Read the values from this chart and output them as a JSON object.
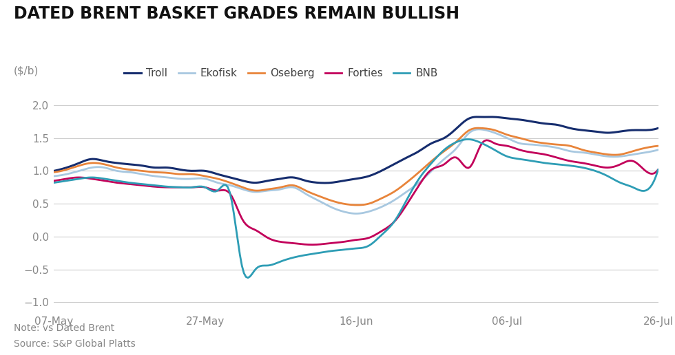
{
  "title": "DATED BRENT BASKET GRADES REMAIN BULLISH",
  "ylabel": "($/b)",
  "note": "Note: vs Dated Brent",
  "source": "Source: S&P Global Platts",
  "title_fontsize": 17,
  "label_fontsize": 11,
  "tick_fontsize": 11,
  "note_fontsize": 10,
  "ylim": [
    -1.1,
    2.25
  ],
  "yticks": [
    -1.0,
    -0.5,
    0.0,
    0.5,
    1.0,
    1.5,
    2.0
  ],
  "xtick_labels": [
    "07-May",
    "27-May",
    "16-Jun",
    "06-Jul",
    "26-Jul"
  ],
  "background_color": "#ffffff",
  "grid_color": "#cccccc",
  "series": {
    "Troll": {
      "color": "#162d6e",
      "linewidth": 2.2,
      "data": [
        1.0,
        1.05,
        1.12,
        1.18,
        1.15,
        1.12,
        1.1,
        1.08,
        1.05,
        1.05,
        1.02,
        1.0,
        1.0,
        0.95,
        0.9,
        0.85,
        0.82,
        0.85,
        0.88,
        0.9,
        0.85,
        0.82,
        0.82,
        0.85,
        0.88,
        0.92,
        1.0,
        1.1,
        1.2,
        1.3,
        1.42,
        1.5,
        1.65,
        1.8,
        1.82,
        1.82,
        1.8,
        1.78,
        1.75,
        1.72,
        1.7,
        1.65,
        1.62,
        1.6,
        1.58,
        1.6,
        1.62,
        1.62,
        1.65
      ]
    },
    "Ekofisk": {
      "color": "#a8c8e0",
      "linewidth": 2.0,
      "data": [
        0.92,
        0.95,
        1.0,
        1.05,
        1.05,
        1.0,
        0.98,
        0.95,
        0.92,
        0.9,
        0.88,
        0.88,
        0.88,
        0.82,
        0.78,
        0.72,
        0.68,
        0.7,
        0.72,
        0.75,
        0.65,
        0.55,
        0.45,
        0.38,
        0.35,
        0.38,
        0.45,
        0.55,
        0.68,
        0.82,
        1.0,
        1.18,
        1.35,
        1.58,
        1.63,
        1.58,
        1.5,
        1.42,
        1.4,
        1.38,
        1.35,
        1.3,
        1.28,
        1.25,
        1.22,
        1.22,
        1.25,
        1.28,
        1.32
      ]
    },
    "Oseberg": {
      "color": "#e8843a",
      "linewidth": 2.0,
      "data": [
        0.98,
        1.02,
        1.08,
        1.12,
        1.1,
        1.05,
        1.02,
        1.0,
        0.98,
        0.97,
        0.95,
        0.95,
        0.92,
        0.88,
        0.82,
        0.75,
        0.7,
        0.72,
        0.75,
        0.78,
        0.7,
        0.62,
        0.55,
        0.5,
        0.48,
        0.5,
        0.58,
        0.68,
        0.82,
        0.98,
        1.15,
        1.3,
        1.45,
        1.62,
        1.65,
        1.62,
        1.55,
        1.5,
        1.45,
        1.42,
        1.4,
        1.38,
        1.32,
        1.28,
        1.25,
        1.25,
        1.3,
        1.35,
        1.38
      ]
    },
    "Forties": {
      "color": "#c2005a",
      "linewidth": 2.0,
      "data": [
        0.85,
        0.88,
        0.9,
        0.88,
        0.85,
        0.82,
        0.8,
        0.78,
        0.76,
        0.75,
        0.75,
        0.75,
        0.75,
        0.7,
        0.65,
        0.25,
        0.1,
        -0.02,
        -0.08,
        -0.1,
        -0.12,
        -0.12,
        -0.1,
        -0.08,
        -0.05,
        -0.02,
        0.08,
        0.22,
        0.48,
        0.78,
        1.02,
        1.1,
        1.2,
        1.05,
        1.42,
        1.42,
        1.38,
        1.32,
        1.28,
        1.25,
        1.2,
        1.15,
        1.12,
        1.08,
        1.05,
        1.1,
        1.15,
        1.0,
        1.02
      ]
    },
    "BNB": {
      "color": "#2e9db5",
      "linewidth": 2.0,
      "data": [
        0.82,
        0.85,
        0.88,
        0.9,
        0.88,
        0.85,
        0.82,
        0.8,
        0.78,
        0.76,
        0.75,
        0.75,
        0.75,
        0.7,
        0.65,
        -0.5,
        -0.5,
        -0.44,
        -0.38,
        -0.32,
        -0.28,
        -0.25,
        -0.22,
        -0.2,
        -0.18,
        -0.14,
        0.02,
        0.22,
        0.55,
        0.88,
        1.12,
        1.32,
        1.44,
        1.48,
        1.42,
        1.32,
        1.22,
        1.18,
        1.15,
        1.12,
        1.1,
        1.08,
        1.05,
        1.0,
        0.92,
        0.82,
        0.75,
        0.7,
        1.02
      ]
    }
  }
}
